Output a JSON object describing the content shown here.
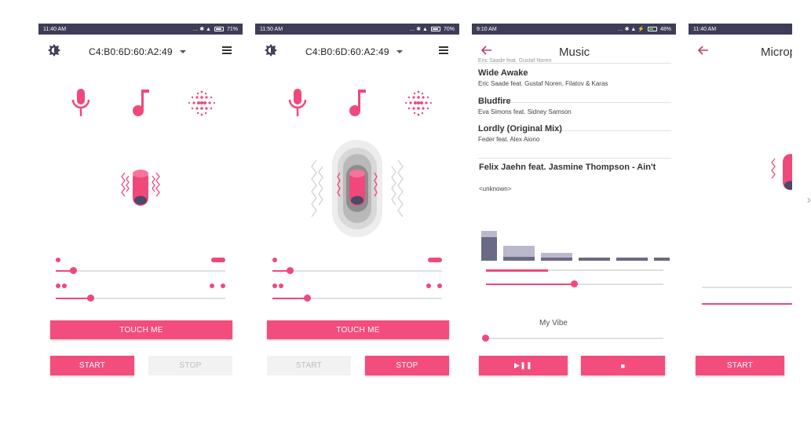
{
  "colors": {
    "accent": "#f0487a",
    "statusbar": "#3d3d58",
    "button": "#f34d7e"
  },
  "phone1": {
    "time": "11:40 AM",
    "battery": "71%",
    "battery_level": 0.71,
    "device_name": "C4:B0:6D:60:A2:49",
    "touch_label": "TOUCH ME",
    "start_label": "START",
    "stop_label": "STOP",
    "sliders": [
      0.1,
      0.2
    ]
  },
  "phone2": {
    "time": "11:50 AM",
    "battery": "70%",
    "battery_level": 0.7,
    "device_name": "C4:B0:6D:60:A2:49",
    "touch_label": "TOUCH ME",
    "start_label": "START",
    "stop_label": "STOP",
    "sliders": [
      0.1,
      0.2
    ]
  },
  "phone3": {
    "time": "9:10 AM",
    "battery": "48%",
    "battery_level": 0.48,
    "title": "Music",
    "cut_text": "Eric Saade feat. Gustaf Noren",
    "songs": [
      {
        "title": "Wide Awake",
        "artist": "Eric Saade feat. Gustaf Noren, Filatov & Karas"
      },
      {
        "title": "Bludfire",
        "artist": "Eva Simons feat. Sidney Samson"
      },
      {
        "title": "Lordly (Original Mix)",
        "artist": "Feder feat. Alex Aiono"
      }
    ],
    "now_title": "Felix Jaehn feat. Jasmine Thompson - Ain't",
    "now_artist": "<unknown>",
    "progress": 0.35,
    "volume": 0.5,
    "vibe_label": "My Vibe",
    "vibe_level": 0.0,
    "play_pause_label": "▶❚❚",
    "stop_label": "■"
  },
  "phone4": {
    "time": "11:40 AM",
    "title": "Microp",
    "start_label": "START"
  }
}
